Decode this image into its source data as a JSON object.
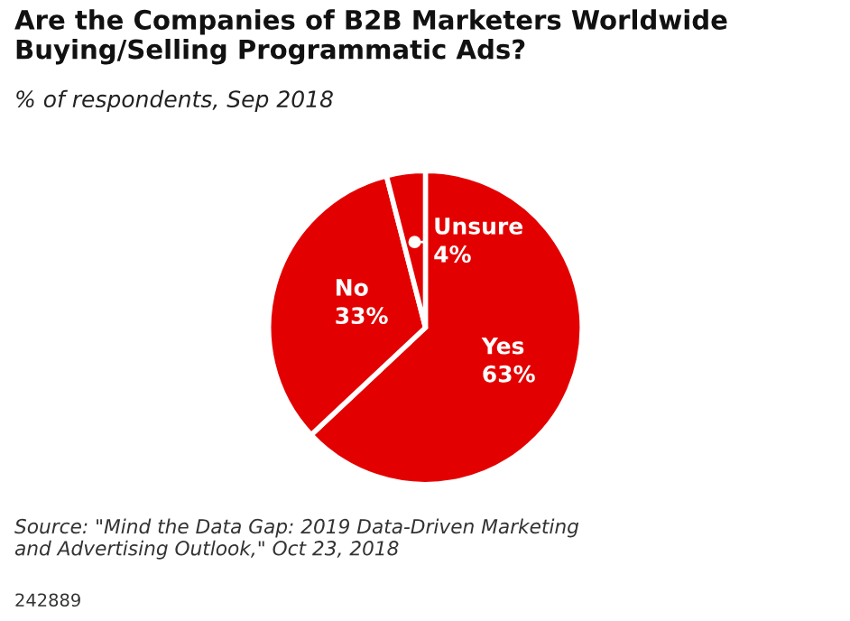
{
  "chart_data": {
    "type": "pie",
    "title": "Are the Companies of B2B Marketers Worldwide\nBuying/Selling Programmatic Ads?",
    "subtitle": "% of respondents, Sep 2018",
    "categories": [
      "Yes",
      "No",
      "Unsure"
    ],
    "values": [
      63,
      33,
      4
    ],
    "colors": [
      "#e30000",
      "#e30000",
      "#e30000"
    ],
    "value_labels": [
      "63%",
      "33%",
      "4%"
    ],
    "annotations": [
      "Source: \"Mind the Data Gap: 2019 Data-Driven Marketing\nand Advertising Outlook,\" Oct 23, 2018",
      "242889"
    ]
  }
}
